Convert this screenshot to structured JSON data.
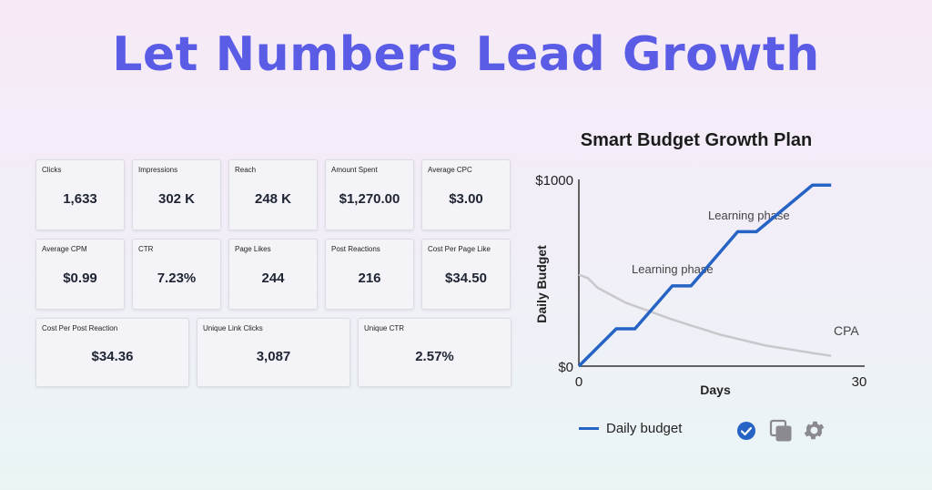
{
  "headline": "Let Numbers Lead Growth",
  "metrics": {
    "row1": [
      {
        "label": "Clicks",
        "value": "1,633"
      },
      {
        "label": "Impressions",
        "value": "302 K"
      },
      {
        "label": "Reach",
        "value": "248 K"
      },
      {
        "label": "Amount Spent",
        "value": "$1,270.00"
      },
      {
        "label": "Average CPC",
        "value": "$3.00"
      }
    ],
    "row2": [
      {
        "label": "Average CPM",
        "value": "$0.99"
      },
      {
        "label": "CTR",
        "value": "7.23%"
      },
      {
        "label": "Page Likes",
        "value": "244"
      },
      {
        "label": "Post Reactions",
        "value": "216"
      },
      {
        "label": "Cost Per Page Like",
        "value": "$34.50"
      }
    ],
    "row3": [
      {
        "label": "Cost Per Post Reaction",
        "value": "$34.36"
      },
      {
        "label": "Unique Link Clicks",
        "value": "3,087"
      },
      {
        "label": "Unique CTR",
        "value": "2.57%"
      }
    ]
  },
  "chart_data": {
    "type": "line",
    "title": "Smart Budget Growth Plan",
    "xlabel": "Days",
    "ylabel": "Daily Budget",
    "x_ticks": [
      "0",
      "30"
    ],
    "y_ticks": [
      "$0",
      "$1000"
    ],
    "xlim": [
      0,
      30
    ],
    "ylim": [
      0,
      1000
    ],
    "series": [
      {
        "name": "Daily budget",
        "color": "#2563c4",
        "x": [
          0,
          4,
          6,
          10,
          12,
          17,
          19,
          25,
          27
        ],
        "y": [
          0,
          200,
          200,
          430,
          430,
          720,
          720,
          970,
          970
        ]
      },
      {
        "name": "CPA",
        "color": "#c8c8cc",
        "x": [
          0,
          1,
          2,
          5,
          10,
          15,
          20,
          25,
          27
        ],
        "y": [
          490,
          470,
          420,
          340,
          250,
          170,
          110,
          70,
          55
        ]
      }
    ],
    "annotations": [
      "Learning phase",
      "Learning phase",
      "CPA"
    ],
    "legend": "bottom-left"
  },
  "icons": [
    "check-circle-icon",
    "copy-icon",
    "gear-icon"
  ]
}
